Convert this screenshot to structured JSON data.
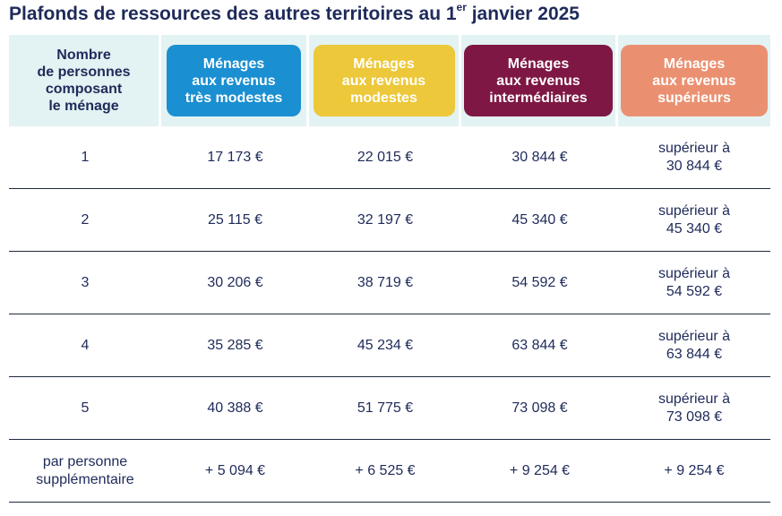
{
  "title_main": "Plafonds de ressources des autres territoires au 1",
  "title_sup": "er",
  "title_end": " janvier 2025",
  "headers": [
    {
      "label": "Nombre\nde personnes\ncomposant\nle ménage"
    },
    {
      "label": "Ménages\naux revenus\ntrès modestes",
      "color": "#1a8fd1"
    },
    {
      "label": "Ménages\naux revenus\nmodestes",
      "color": "#ecc83a"
    },
    {
      "label": "Ménages\naux revenus\nintermédiaires",
      "color": "#7e1743"
    },
    {
      "label": "Ménages\naux revenus\nsupérieurs",
      "color": "#ea9071"
    }
  ],
  "rows": [
    {
      "persons": "1",
      "tres_modestes": "17 173 €",
      "modestes": "22 015 €",
      "intermediaires": "30 844 €",
      "superieurs": "supérieur à\n30 844 €"
    },
    {
      "persons": "2",
      "tres_modestes": "25 115 €",
      "modestes": "32 197 €",
      "intermediaires": "45 340 €",
      "superieurs": "supérieur à\n45 340 €"
    },
    {
      "persons": "3",
      "tres_modestes": "30 206 €",
      "modestes": "38 719 €",
      "intermediaires": "54 592 €",
      "superieurs": "supérieur à\n54 592 €"
    },
    {
      "persons": "4",
      "tres_modestes": "35 285 €",
      "modestes": "45 234 €",
      "intermediaires": "63 844 €",
      "superieurs": "supérieur à\n63 844 €"
    },
    {
      "persons": "5",
      "tres_modestes": "40 388 €",
      "modestes": "51 775 €",
      "intermediaires": "73 098 €",
      "superieurs": "supérieur à\n73 098 €"
    },
    {
      "persons": "par personne\nsupplémentaire",
      "tres_modestes": "+ 5 094 €",
      "modestes": "+ 6 525 €",
      "intermediaires": "+ 9 254 €",
      "superieurs": "+ 9 254 €"
    }
  ]
}
